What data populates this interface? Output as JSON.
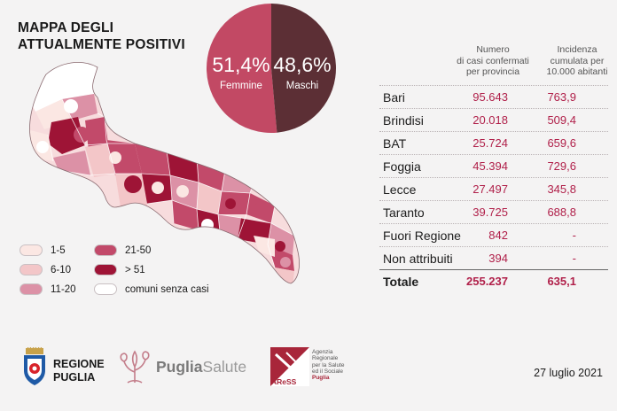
{
  "title_line1": "MAPPA DEGLI",
  "title_line2": "ATTUALMENTE POSITIVI",
  "gender": {
    "female_pct": "51,4%",
    "female_label": "Femmine",
    "male_pct": "48,6%",
    "male_label": "Maschi",
    "female_share": 0.514,
    "female_color": "#c24964",
    "male_color": "#5c2f35"
  },
  "legend": [
    {
      "label": "1-5",
      "color": "#fbe7e3"
    },
    {
      "label": "6-10",
      "color": "#f3c6c8"
    },
    {
      "label": "11-20",
      "color": "#dc91a6"
    },
    {
      "label": "21-50",
      "color": "#c24a6a"
    },
    {
      "label": "> 51",
      "color": "#9e1436"
    },
    {
      "label": "comuni senza casi",
      "color": "#ffffff"
    }
  ],
  "table": {
    "header_cases": [
      "Numero",
      "di casi confermati",
      "per provincia"
    ],
    "header_incidence": [
      "Incidenza",
      "cumulata per",
      "10.000 abitanti"
    ],
    "rows": [
      {
        "name": "Bari",
        "cases": "95.643",
        "inc": "763,9"
      },
      {
        "name": "Brindisi",
        "cases": "20.018",
        "inc": "509,4"
      },
      {
        "name": "BAT",
        "cases": "25.724",
        "inc": "659,6"
      },
      {
        "name": "Foggia",
        "cases": "45.394",
        "inc": "729,6"
      },
      {
        "name": "Lecce",
        "cases": "27.497",
        "inc": "345,8"
      },
      {
        "name": "Taranto",
        "cases": "39.725",
        "inc": "688,8"
      },
      {
        "name": "Fuori Regione",
        "cases": "842",
        "inc": "-"
      },
      {
        "name": "Non attribuiti",
        "cases": "394",
        "inc": "-"
      }
    ],
    "total": {
      "name": "Totale",
      "cases": "255.237",
      "inc": "635,1"
    }
  },
  "logos": {
    "regione_line1": "REGIONE",
    "regione_line2": "PUGLIA",
    "puglia": "Puglia",
    "salute": "Salute",
    "aress_short": "AReSS",
    "aress_text": [
      "Agenzia",
      "Regionale",
      "per la Salute",
      "ed il Sociale",
      "Puglia"
    ]
  },
  "date": "27 luglio 2021"
}
